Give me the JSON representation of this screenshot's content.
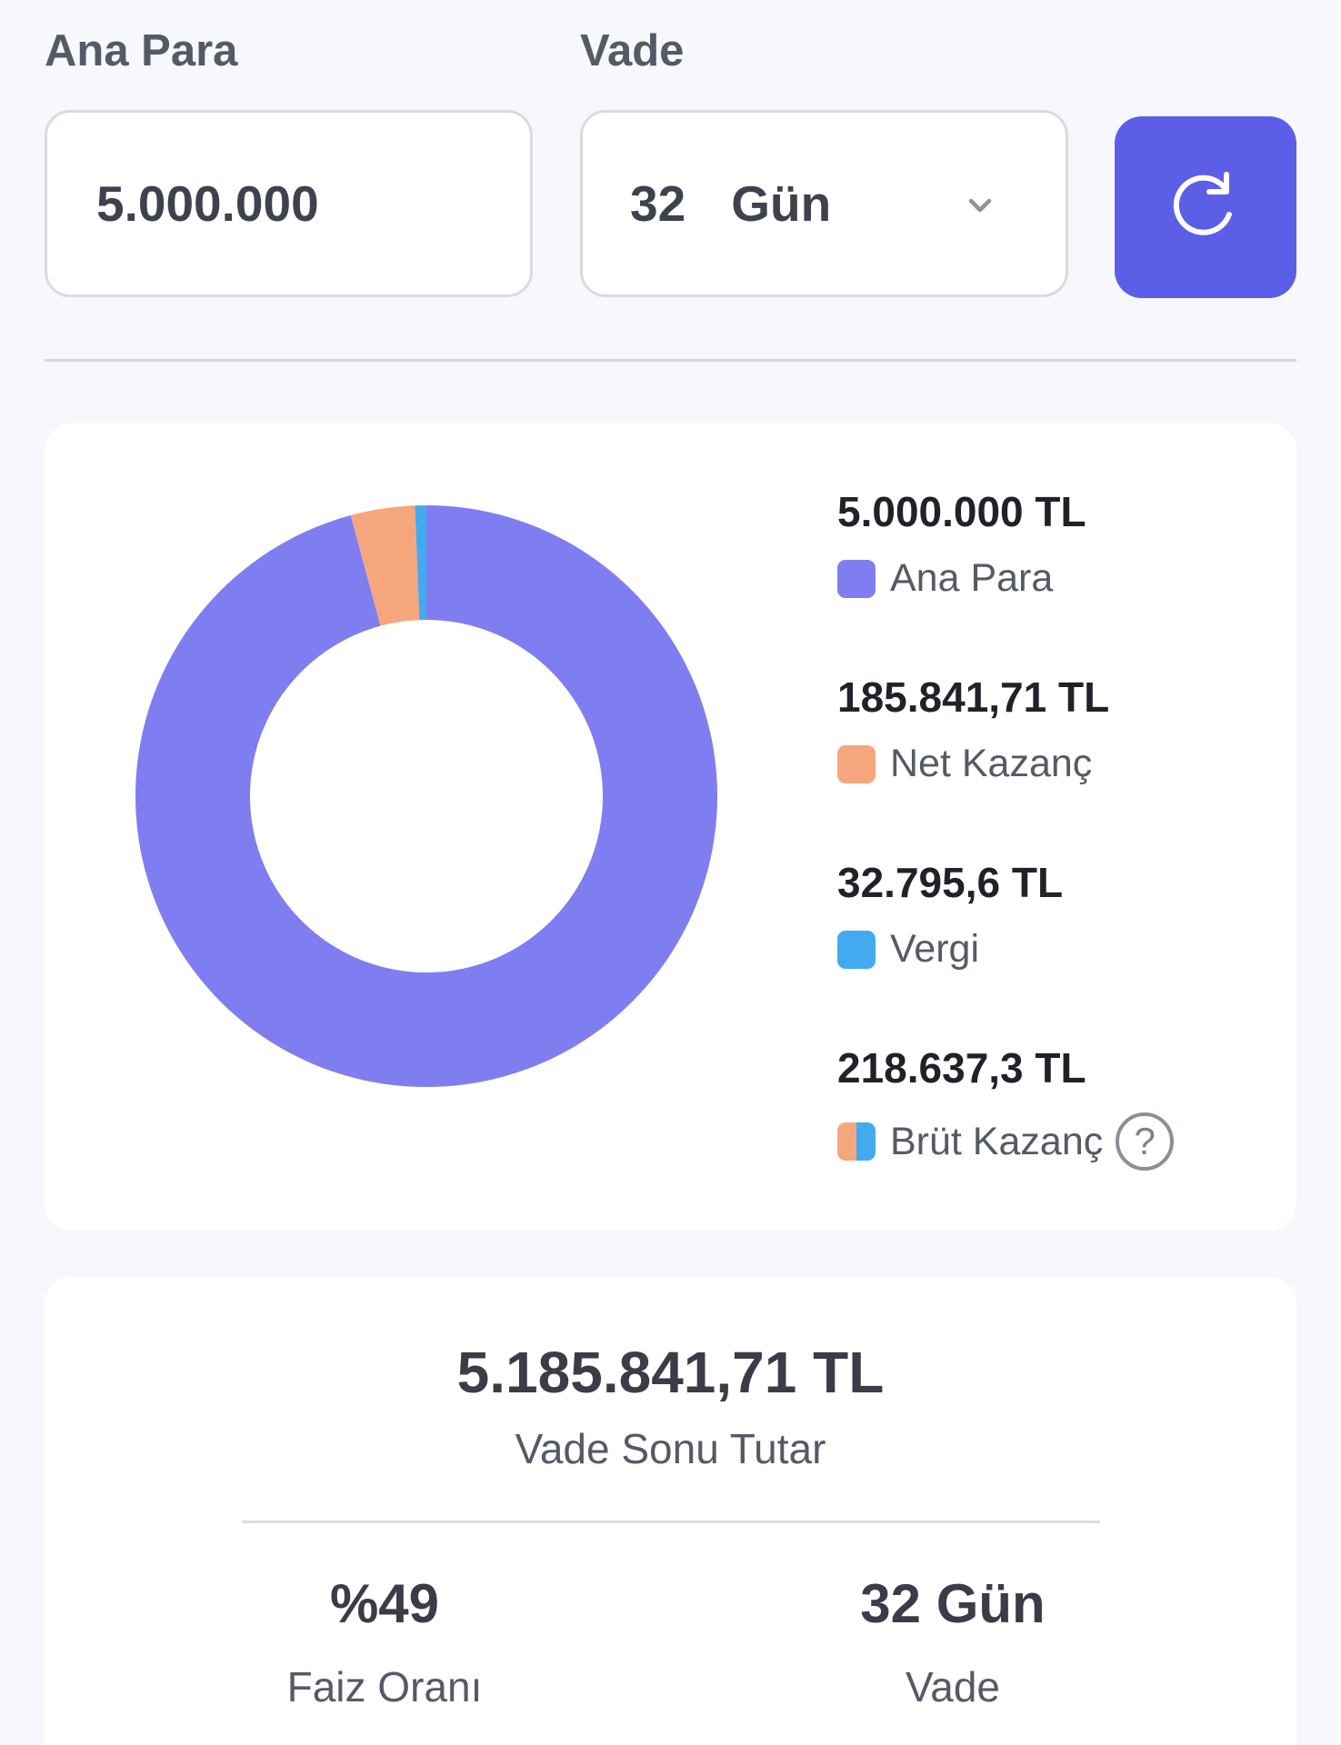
{
  "form": {
    "amount_label": "Ana Para",
    "amount_value": "5.000.000",
    "term_label": "Vade",
    "term_value": "32",
    "term_unit": "Gün",
    "refresh_icon": "refresh-icon",
    "chevron_icon": "chevron-down-icon"
  },
  "colors": {
    "accent": "#5d5ee8",
    "principal": "#7e7ef0",
    "net": "#f5a67c",
    "tax": "#43aaf0"
  },
  "chart_data": {
    "type": "pie",
    "categories": [
      "Ana Para",
      "Net Kazanç",
      "Vergi"
    ],
    "values": [
      5000000,
      185841.71,
      32795.6
    ],
    "colors": [
      "#7e7ef0",
      "#f5a67c",
      "#43aaf0"
    ]
  },
  "legend": [
    {
      "value": "5.000.000 TL",
      "label": "Ana Para"
    },
    {
      "value": "185.841,71 TL",
      "label": "Net Kazanç"
    },
    {
      "value": "32.795,6 TL",
      "label": "Vergi"
    },
    {
      "value": "218.637,3 TL",
      "label": "Brüt Kazanç",
      "help": "?"
    }
  ],
  "summary": {
    "total_value": "5.185.841,71 TL",
    "total_label": "Vade Sonu Tutar",
    "rate_value": "%49",
    "rate_label": "Faiz Oranı",
    "term_value": "32 Gün",
    "term_label": "Vade"
  }
}
